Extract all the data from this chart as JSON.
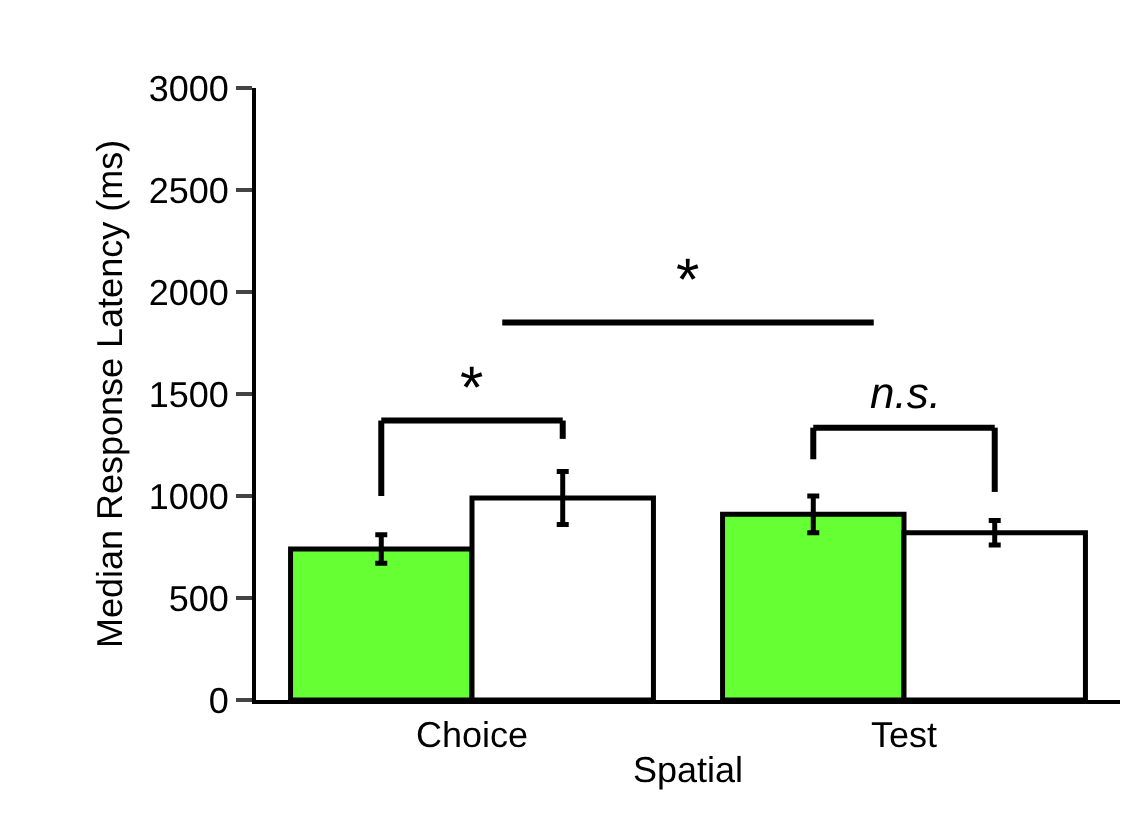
{
  "chart_data": {
    "type": "bar",
    "xlabel": "Spatial",
    "ylabel": "Median Response Latency (ms)",
    "categories": [
      "Choice",
      "Test"
    ],
    "series": [
      {
        "color": "#66ff33",
        "values": [
          740,
          910
        ],
        "errors": [
          70,
          90
        ]
      },
      {
        "color": "#ffffff",
        "values": [
          990,
          820
        ],
        "errors": [
          130,
          60
        ]
      }
    ],
    "ylim": [
      0,
      3000
    ],
    "yticks": [
      0,
      500,
      1000,
      1500,
      2000,
      2500,
      3000
    ],
    "annotations": [
      "*",
      "*",
      "n.s."
    ]
  }
}
